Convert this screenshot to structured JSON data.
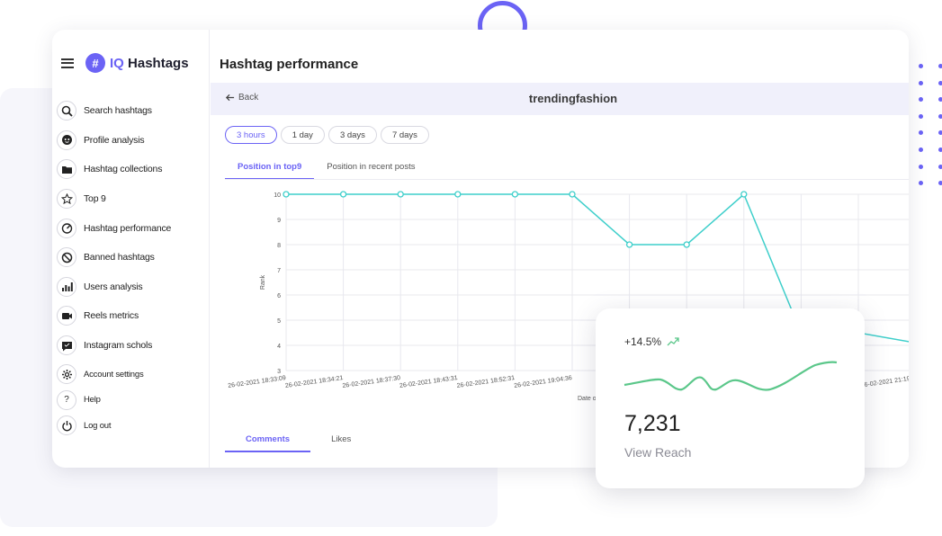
{
  "app": {
    "brand_prefix": "IQ",
    "brand_name": "Hashtags",
    "logo_glyph": "#"
  },
  "sidebar": {
    "items": [
      {
        "label": "Search hashtags",
        "icon": "search-icon"
      },
      {
        "label": "Profile analysis",
        "icon": "profile-icon"
      },
      {
        "label": "Hashtag collections",
        "icon": "folder-icon"
      },
      {
        "label": "Top 9",
        "icon": "star-icon"
      },
      {
        "label": "Hashtag performance",
        "icon": "gauge-icon"
      },
      {
        "label": "Banned hashtags",
        "icon": "ban-icon"
      },
      {
        "label": "Users analysis",
        "icon": "bar-chart-icon"
      },
      {
        "label": "Reels metrics",
        "icon": "video-icon"
      },
      {
        "label": "Instagram schols",
        "icon": "message-icon"
      }
    ],
    "bottom_items": [
      {
        "label": "Account settings",
        "icon": "gear-icon"
      },
      {
        "label": "Help",
        "icon": "help-icon",
        "glyph": "?"
      },
      {
        "label": "Log out",
        "icon": "power-icon"
      }
    ]
  },
  "main": {
    "title": "Hashtag performance",
    "back_label": "Back",
    "hashtag": "trendingfashion",
    "ranges": [
      "3 hours",
      "1 day",
      "3 days",
      "7 days"
    ],
    "active_range": "3 hours",
    "tabs": [
      "Position in top9",
      "Position in recent posts"
    ],
    "bottom_tabs": [
      "Comments",
      "Likes"
    ]
  },
  "chart_data": {
    "type": "line",
    "ylabel": "Rank",
    "xlabel": "Date o",
    "ylim": [
      3,
      10
    ],
    "yticks": [
      3,
      4,
      5,
      6,
      7,
      8,
      9,
      10
    ],
    "x": [
      "26-02-2021 18:33:09",
      "26-02-2021 18:34:21",
      "26-02-2021 18:37:30",
      "26-02-2021 18:43:31",
      "26-02-2021 18:52:31",
      "26-02-2021 19:04:36",
      "26-02-20",
      "",
      "",
      "",
      "",
      "26-02-2021 21:19:5"
    ],
    "values": [
      10,
      10,
      10,
      10,
      10,
      10,
      8,
      8,
      10,
      4.5,
      4.5,
      4.1
    ],
    "grid": true,
    "line_color": "#3fcfcb"
  },
  "card": {
    "change": "+14.5%",
    "value": "7,231",
    "label": "View Reach",
    "trend_color": "#5bc78a"
  },
  "colors": {
    "accent": "#6b63f5",
    "highlight": "#f5d246"
  }
}
